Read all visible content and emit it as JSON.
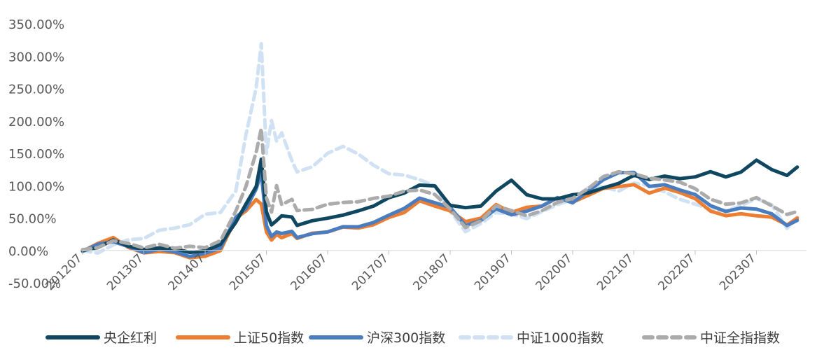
{
  "chart_data": {
    "type": "line",
    "title": "",
    "xlabel": "",
    "ylabel": "",
    "ylim": [
      -50,
      350
    ],
    "y_ticks": [
      "-50.00%",
      "0.00%",
      "50.00%",
      "100.00%",
      "150.00%",
      "200.00%",
      "250.00%",
      "300.00%",
      "350.00%"
    ],
    "x_ticks": [
      "201207",
      "201307",
      "201407",
      "201507",
      "201607",
      "201707",
      "201807",
      "201907",
      "202007",
      "202107",
      "202207",
      "202307"
    ],
    "x_label_rotation": -45,
    "grid": false,
    "legend_position": "bottom",
    "x_months": [
      "201207",
      "201210",
      "201301",
      "201304",
      "201307",
      "201310",
      "201401",
      "201404",
      "201407",
      "201410",
      "201501",
      "201503",
      "201505",
      "201506",
      "201507",
      "201508",
      "201509",
      "201510",
      "201512",
      "201601",
      "201604",
      "201607",
      "201610",
      "201701",
      "201704",
      "201707",
      "201710",
      "201801",
      "201804",
      "201807",
      "201810",
      "201901",
      "201904",
      "201907",
      "201910",
      "202001",
      "202004",
      "202007",
      "202010",
      "202101",
      "202104",
      "202107",
      "202110",
      "202201",
      "202204",
      "202207",
      "202210",
      "202301",
      "202304",
      "202307",
      "202310",
      "202401",
      "202403"
    ],
    "series": [
      {
        "name": "央企红利",
        "color": "#0f4761",
        "style": "solid",
        "values": [
          0,
          5,
          15,
          8,
          0,
          5,
          2,
          -3,
          0,
          8,
          45,
          70,
          100,
          140,
          60,
          40,
          45,
          55,
          50,
          40,
          45,
          50,
          55,
          60,
          70,
          80,
          90,
          100,
          100,
          70,
          65,
          70,
          90,
          110,
          85,
          80,
          80,
          85,
          90,
          95,
          105,
          115,
          110,
          115,
          110,
          115,
          120,
          115,
          120,
          140,
          125,
          115,
          130
        ]
      },
      {
        "name": "上证50指数",
        "color": "#ed7d31",
        "style": "solid",
        "values": [
          0,
          10,
          20,
          5,
          -5,
          0,
          -5,
          -10,
          -10,
          0,
          50,
          60,
          80,
          70,
          30,
          15,
          25,
          20,
          25,
          20,
          25,
          30,
          35,
          35,
          40,
          50,
          60,
          75,
          70,
          60,
          45,
          50,
          70,
          60,
          65,
          70,
          80,
          75,
          85,
          95,
          100,
          100,
          90,
          95,
          90,
          80,
          60,
          55,
          55,
          55,
          50,
          40,
          50
        ]
      },
      {
        "name": "沪深300指数",
        "color": "#4a7dbf",
        "style": "solid",
        "values": [
          0,
          8,
          15,
          5,
          -3,
          2,
          -3,
          -8,
          -6,
          5,
          50,
          65,
          95,
          120,
          40,
          20,
          30,
          25,
          30,
          20,
          25,
          30,
          35,
          38,
          42,
          55,
          65,
          80,
          75,
          65,
          40,
          45,
          65,
          55,
          60,
          70,
          80,
          75,
          90,
          110,
          120,
          120,
          100,
          100,
          95,
          85,
          70,
          60,
          65,
          65,
          55,
          40,
          45
        ]
      },
      {
        "name": "中证1000指数",
        "color": "#cfe1f3",
        "style": "dashed",
        "values": [
          0,
          -5,
          10,
          15,
          20,
          30,
          35,
          40,
          55,
          60,
          90,
          180,
          250,
          320,
          150,
          200,
          170,
          180,
          140,
          120,
          130,
          150,
          160,
          150,
          130,
          120,
          115,
          110,
          100,
          60,
          30,
          40,
          60,
          55,
          50,
          60,
          70,
          80,
          95,
          100,
          90,
          105,
          100,
          90,
          80,
          70,
          65,
          60,
          70,
          80,
          70,
          35,
          50
        ]
      },
      {
        "name": "中证全指指数",
        "color": "#ababab",
        "style": "dashed",
        "values": [
          0,
          5,
          15,
          10,
          5,
          8,
          5,
          5,
          5,
          15,
          60,
          100,
          150,
          190,
          80,
          60,
          100,
          70,
          80,
          60,
          65,
          70,
          75,
          75,
          80,
          85,
          90,
          95,
          85,
          65,
          35,
          45,
          70,
          60,
          55,
          60,
          75,
          80,
          95,
          115,
          120,
          120,
          110,
          110,
          105,
          95,
          80,
          70,
          75,
          80,
          70,
          55,
          60
        ]
      }
    ]
  }
}
